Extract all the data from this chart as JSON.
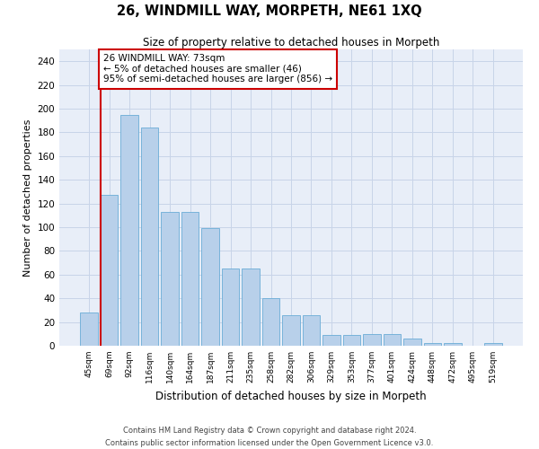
{
  "title": "26, WINDMILL WAY, MORPETH, NE61 1XQ",
  "subtitle": "Size of property relative to detached houses in Morpeth",
  "xlabel": "Distribution of detached houses by size in Morpeth",
  "ylabel": "Number of detached properties",
  "categories": [
    "45sqm",
    "69sqm",
    "92sqm",
    "116sqm",
    "140sqm",
    "164sqm",
    "187sqm",
    "211sqm",
    "235sqm",
    "258sqm",
    "282sqm",
    "306sqm",
    "329sqm",
    "353sqm",
    "377sqm",
    "401sqm",
    "424sqm",
    "448sqm",
    "472sqm",
    "495sqm",
    "519sqm"
  ],
  "values": [
    28,
    127,
    195,
    184,
    113,
    113,
    99,
    65,
    65,
    40,
    26,
    26,
    9,
    9,
    10,
    10,
    6,
    2,
    2,
    0,
    2
  ],
  "bar_color": "#b8d0ea",
  "bar_edge_color": "#6aacd6",
  "grid_color": "#c8d4e8",
  "background_color": "#e8eef8",
  "vline_color": "#cc0000",
  "annotation_text": "26 WINDMILL WAY: 73sqm\n← 5% of detached houses are smaller (46)\n95% of semi-detached houses are larger (856) →",
  "annotation_box_color": "#ffffff",
  "annotation_box_edge": "#cc0000",
  "footer_line1": "Contains HM Land Registry data © Crown copyright and database right 2024.",
  "footer_line2": "Contains public sector information licensed under the Open Government Licence v3.0.",
  "ylim": [
    0,
    250
  ],
  "yticks": [
    0,
    20,
    40,
    60,
    80,
    100,
    120,
    140,
    160,
    180,
    200,
    220,
    240
  ]
}
